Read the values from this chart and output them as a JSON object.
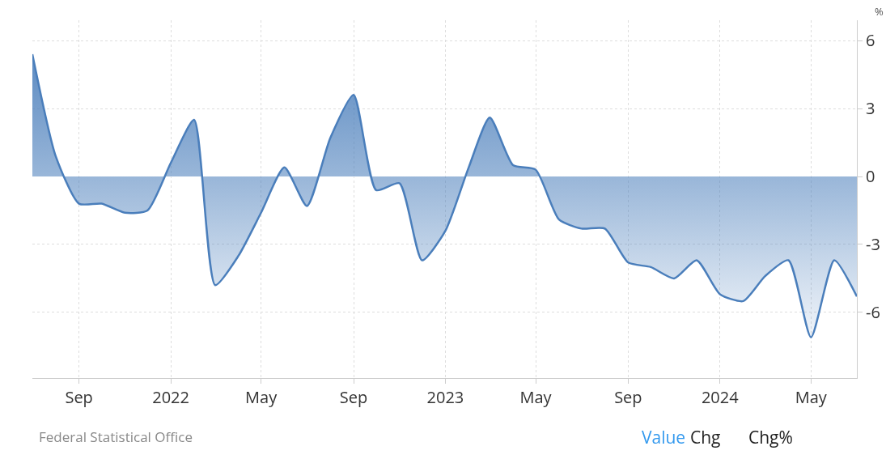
{
  "chart_data": {
    "type": "area",
    "ylabel": "%",
    "color": "#4a7ebb",
    "x": [
      "2021-07",
      "2021-08",
      "2021-09",
      "2021-10",
      "2021-11",
      "2021-12",
      "2022-01",
      "2022-02",
      "2022-03",
      "2022-04",
      "2022-05",
      "2022-06",
      "2022-07",
      "2022-08",
      "2022-09",
      "2022-10",
      "2022-11",
      "2022-12",
      "2023-01",
      "2023-02",
      "2023-03",
      "2023-04",
      "2023-05",
      "2023-06",
      "2023-07",
      "2023-08",
      "2023-09",
      "2023-10",
      "2023-11",
      "2023-12",
      "2024-01",
      "2024-02",
      "2024-03",
      "2024-04",
      "2024-05",
      "2024-06",
      "2024-07"
    ],
    "values": [
      5.4,
      0.9,
      -1.2,
      -1.2,
      -1.6,
      -1.5,
      0.6,
      2.5,
      -4.8,
      -3.5,
      -1.6,
      0.4,
      -1.3,
      1.7,
      3.6,
      -0.6,
      -0.3,
      -3.7,
      -2.4,
      0.4,
      2.6,
      0.5,
      0.3,
      -1.9,
      -2.3,
      -2.3,
      -3.8,
      -4.0,
      -4.5,
      -3.7,
      -5.2,
      -5.5,
      -4.4,
      -3.7,
      -7.1,
      -3.7,
      -5.3
    ],
    "xlim": [
      "2021-07-01",
      "2024-07-01"
    ],
    "xticks": [
      {
        "value": "2021-09-01",
        "label": "Sep"
      },
      {
        "value": "2022-01-01",
        "label": "2022"
      },
      {
        "value": "2022-05-01",
        "label": "May"
      },
      {
        "value": "2022-09-01",
        "label": "Sep"
      },
      {
        "value": "2023-01-01",
        "label": "2023"
      },
      {
        "value": "2023-05-01",
        "label": "May"
      },
      {
        "value": "2023-09-01",
        "label": "Sep"
      },
      {
        "value": "2024-01-01",
        "label": "2024"
      },
      {
        "value": "2024-05-01",
        "label": "May"
      }
    ],
    "ylim": [
      -8.9,
      6.9
    ],
    "yticks": [
      -6,
      -3,
      0,
      3,
      6
    ],
    "grid": true,
    "annotations": [
      "Federal Statistical Office",
      "Value",
      "Chg",
      "Chg%"
    ]
  }
}
